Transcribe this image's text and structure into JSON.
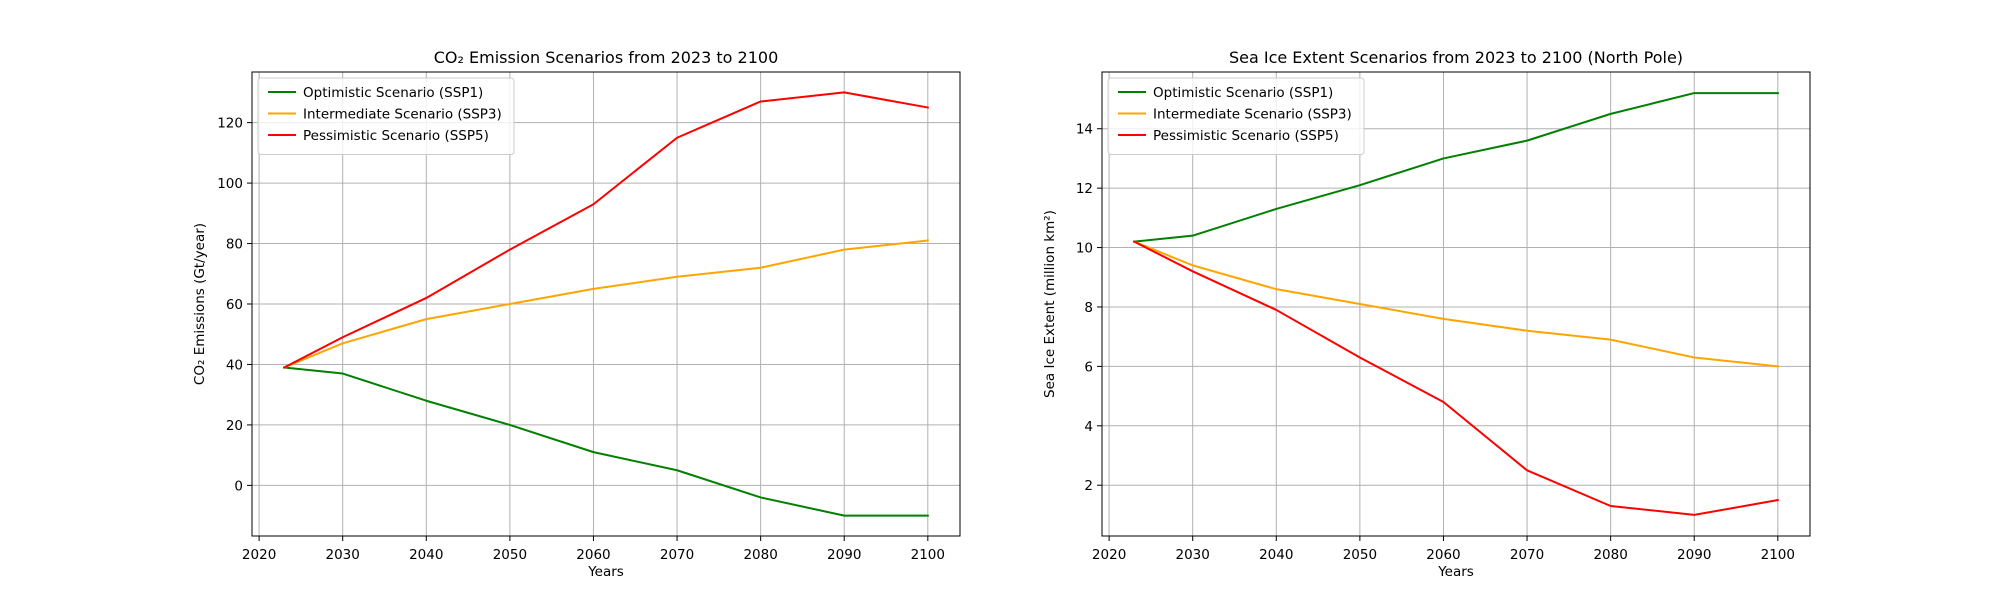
{
  "chart_data": [
    {
      "type": "line",
      "title": "CO₂ Emission Scenarios from 2023 to 2100",
      "xlabel": "Years",
      "ylabel": "CO₂ Emissions (Gt/year)",
      "xlim": [
        2019.15,
        2103.85
      ],
      "ylim": [
        -16.75,
        136.75
      ],
      "xticks": [
        2020,
        2030,
        2040,
        2050,
        2060,
        2070,
        2080,
        2090,
        2100
      ],
      "yticks": [
        0,
        20,
        40,
        60,
        80,
        100,
        120
      ],
      "grid": true,
      "legend": "upper left",
      "x": [
        2023,
        2030,
        2040,
        2050,
        2060,
        2070,
        2080,
        2090,
        2100
      ],
      "series": [
        {
          "name": "Optimistic Scenario (SSP1)",
          "color": "#008000",
          "values": [
            39,
            37,
            28,
            20,
            11,
            5,
            -4,
            -10,
            -10
          ]
        },
        {
          "name": "Intermediate Scenario (SSP3)",
          "color": "#ffa500",
          "values": [
            39,
            47,
            55,
            60,
            65,
            69,
            72,
            78,
            81
          ]
        },
        {
          "name": "Pessimistic Scenario (SSP5)",
          "color": "#ff0000",
          "values": [
            39,
            49,
            62,
            78,
            93,
            115,
            127,
            130,
            125
          ]
        }
      ]
    },
    {
      "type": "line",
      "title": "Sea Ice Extent Scenarios from 2023 to 2100 (North Pole)",
      "xlabel": "Years",
      "ylabel": "Sea Ice Extent (million km²)",
      "xlim": [
        2019.15,
        2103.85
      ],
      "ylim": [
        0.29,
        15.91
      ],
      "xticks": [
        2020,
        2030,
        2040,
        2050,
        2060,
        2070,
        2080,
        2090,
        2100
      ],
      "yticks": [
        2,
        4,
        6,
        8,
        10,
        12,
        14
      ],
      "grid": true,
      "legend": "upper left",
      "x": [
        2023,
        2030,
        2040,
        2050,
        2060,
        2070,
        2080,
        2090,
        2100
      ],
      "series": [
        {
          "name": "Optimistic Scenario (SSP1)",
          "color": "#008000",
          "values": [
            10.2,
            10.4,
            11.3,
            12.1,
            13.0,
            13.6,
            14.5,
            15.2,
            15.2
          ]
        },
        {
          "name": "Intermediate Scenario (SSP3)",
          "color": "#ffa500",
          "values": [
            10.2,
            9.4,
            8.6,
            8.1,
            7.6,
            7.2,
            6.9,
            6.3,
            6.0
          ]
        },
        {
          "name": "Pessimistic Scenario (SSP5)",
          "color": "#ff0000",
          "values": [
            10.2,
            9.2,
            7.9,
            6.3,
            4.8,
            2.5,
            1.3,
            1.0,
            1.5
          ]
        }
      ]
    }
  ]
}
